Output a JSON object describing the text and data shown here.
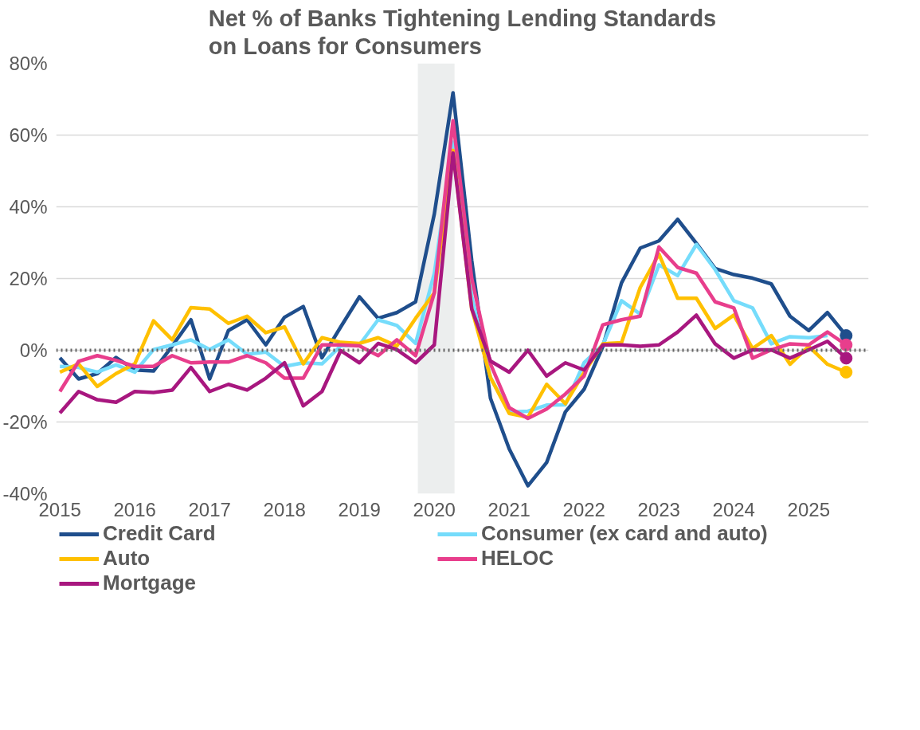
{
  "chart_data": {
    "type": "line",
    "title": "Net % of Banks Tightening Lending Standards on Loans for Consumers",
    "x": [
      2015,
      2015.25,
      2015.5,
      2015.75,
      2016,
      2016.25,
      2016.5,
      2016.75,
      2017,
      2017.25,
      2017.5,
      2017.75,
      2018,
      2018.25,
      2018.5,
      2018.75,
      2019,
      2019.25,
      2019.5,
      2019.75,
      2020,
      2020.25,
      2020.5,
      2020.75,
      2021,
      2021.25,
      2021.5,
      2021.75,
      2022,
      2022.25,
      2022.5,
      2022.75,
      2023,
      2023.25,
      2023.5,
      2023.75,
      2024,
      2024.25,
      2024.5,
      2024.75,
      2025,
      2025.25,
      2025.5
    ],
    "series": [
      {
        "name": "Credit Card",
        "color": "#1f4e8c",
        "values": [
          -2.1,
          -8,
          -6.5,
          -2,
          -5.5,
          -5.8,
          1.2,
          8.5,
          -8,
          5.5,
          8.5,
          1.5,
          9.2,
          12.2,
          -2.1,
          6.5,
          14.9,
          8.9,
          10.5,
          13.5,
          38,
          71.8,
          25,
          -13.4,
          -27.5,
          -37.8,
          -31.3,
          -17.2,
          -10.9,
          1,
          18.8,
          28.5,
          30.5,
          36.5,
          29.8,
          22.8,
          21.1,
          20.1,
          18.5,
          9.5,
          5.5,
          10.5,
          4.1
        ]
      },
      {
        "name": "Consumer (ex card and auto)",
        "color": "#75dcfb",
        "values": [
          -4.5,
          -4.8,
          -6.1,
          -4.1,
          -6.1,
          0.2,
          1.5,
          2.9,
          0.2,
          2.9,
          -1.1,
          -0.5,
          -4.5,
          -3.5,
          -3.8,
          1.2,
          1.5,
          8.5,
          6.9,
          1.9,
          21.4,
          58,
          15,
          -7.6,
          -17.2,
          -17,
          -15.3,
          -15.2,
          -3.5,
          1.5,
          13.8,
          10.1,
          23.8,
          20.8,
          29.5,
          22.5,
          13.8,
          11.8,
          1.8,
          3.8,
          3.5,
          4.1,
          null
        ]
      },
      {
        "name": "Auto",
        "color": "#ffc000",
        "values": [
          -6.1,
          -3.8,
          -10.1,
          -6.5,
          -3.8,
          8.2,
          2.9,
          11.9,
          11.5,
          7.5,
          9.5,
          4.9,
          6.5,
          -3.8,
          3.5,
          2.2,
          1.9,
          3.5,
          1.2,
          8.9,
          16,
          55.7,
          11.5,
          -7.6,
          -17.6,
          -18.7,
          -9.5,
          -14.9,
          -6.2,
          1.8,
          2.1,
          17.5,
          26.8,
          14.5,
          14.5,
          6.1,
          9.8,
          0.5,
          4.1,
          -3.9,
          1.1,
          -3.9,
          -6.1
        ]
      },
      {
        "name": "HELOC",
        "color": "#e83e8c",
        "values": [
          -11.5,
          -3.1,
          -1.5,
          -2.8,
          -4.5,
          -4.5,
          -1.5,
          -3.5,
          -3.3,
          -3.3,
          -1.5,
          -3.5,
          -7.8,
          -7.8,
          1.5,
          1.5,
          1.2,
          -1.5,
          2.9,
          -1.5,
          16,
          64,
          20,
          -3.8,
          -16,
          -19,
          -16.4,
          -12.2,
          -7.2,
          7.1,
          8.5,
          9.5,
          28.8,
          23.1,
          21.5,
          13.5,
          11.8,
          -2.2,
          0.1,
          1.8,
          1.5,
          5.1,
          1.5
        ]
      },
      {
        "name": "Mortgage",
        "color": "#a8177f",
        "values": [
          -17.5,
          -11.5,
          -13.8,
          -14.5,
          -11.5,
          -11.8,
          -11.1,
          -4.8,
          -11.5,
          -9.5,
          -11.1,
          -7.8,
          -3.5,
          -15.5,
          -11.5,
          -0.1,
          -3.5,
          1.9,
          0.2,
          -3.5,
          1.5,
          55,
          11.5,
          -3,
          -6.1,
          0,
          -7.2,
          -3.5,
          -5.5,
          1.5,
          1.5,
          1.1,
          1.5,
          5.1,
          9.8,
          1.8,
          -2.2,
          0.1,
          0.1,
          -2.2,
          0.1,
          2.5,
          -2.2
        ]
      }
    ],
    "xlim": [
      2014.95,
      2025.8
    ],
    "xticks": [
      2015,
      2016,
      2017,
      2018,
      2019,
      2020,
      2021,
      2022,
      2023,
      2024,
      2025
    ],
    "ylim": [
      -40,
      80
    ],
    "yticks": [
      {
        "value": -40,
        "label": "-40%"
      },
      {
        "value": -20,
        "label": "-20%"
      },
      {
        "value": 0,
        "label": "0%"
      },
      {
        "value": 20,
        "label": "20%"
      },
      {
        "value": 40,
        "label": "40%"
      },
      {
        "value": 60,
        "label": "60%"
      },
      {
        "value": 80,
        "label": "80%"
      }
    ],
    "ref_lines": [
      {
        "axis": "y",
        "value": 0,
        "color": "#666666",
        "line_style": "dotted"
      }
    ],
    "bands": [
      {
        "axis": "x",
        "from": 2019.78,
        "to": 2020.27,
        "color": "#eceeee"
      }
    ],
    "grid": "y",
    "legend": "bottom",
    "line_style": "solid"
  }
}
